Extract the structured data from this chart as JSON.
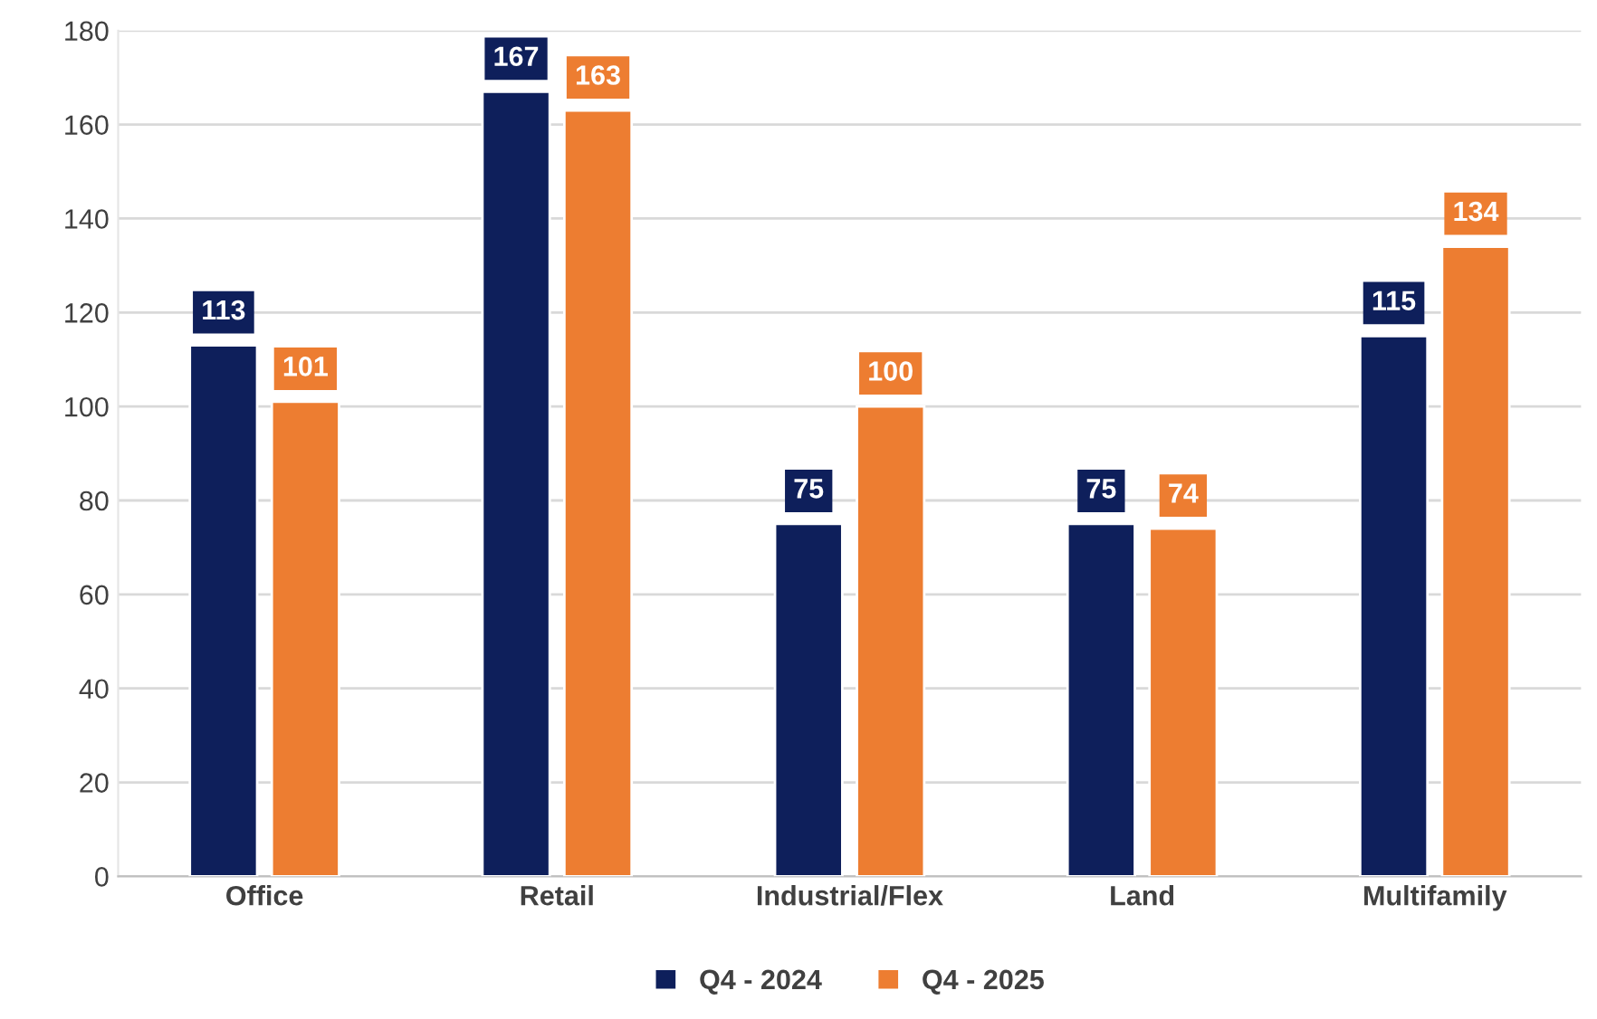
{
  "chart_data": {
    "type": "bar",
    "categories": [
      "Office",
      "Retail",
      "Industrial/Flex",
      "Land",
      "Multifamily"
    ],
    "series": [
      {
        "name": "Q4 - 2024",
        "color": "#0e1f5b",
        "values": [
          113,
          167,
          75,
          75,
          115
        ]
      },
      {
        "name": "Q4 - 2025",
        "color": "#ed7d31",
        "values": [
          101,
          163,
          100,
          74,
          134
        ]
      }
    ],
    "ylim": [
      0,
      180
    ],
    "yticks": [
      0,
      20,
      40,
      60,
      80,
      100,
      120,
      140,
      160,
      180
    ],
    "grid": "y",
    "legend": "bottom",
    "data_labels": true
  }
}
